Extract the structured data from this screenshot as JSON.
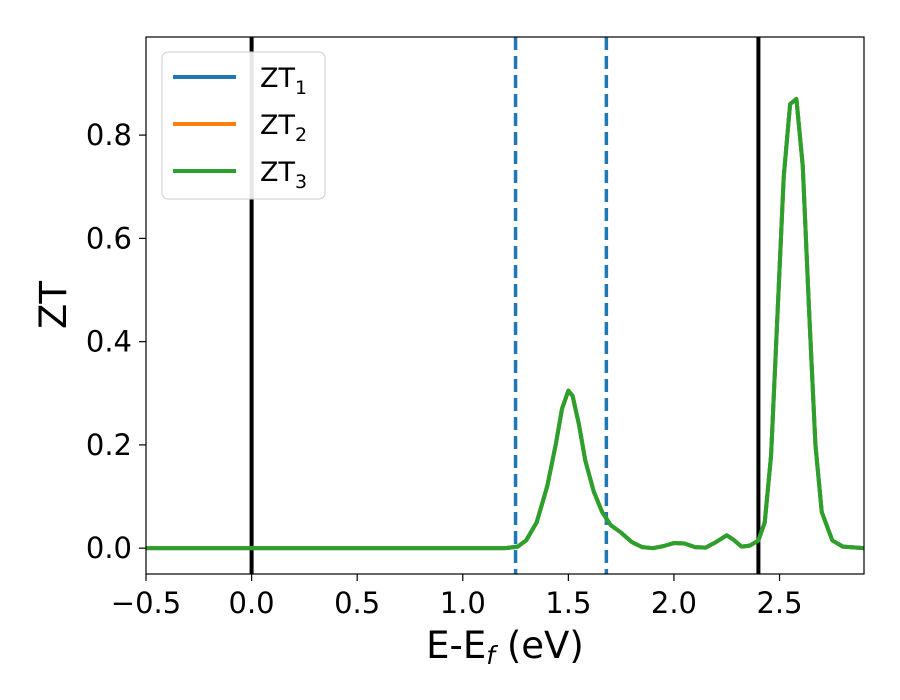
{
  "chart_data": {
    "type": "line",
    "xlabel": "E-E_f (eV)",
    "xlabel_parts": {
      "main": "E-E",
      "sub": "f",
      "unit": " (eV)"
    },
    "ylabel": "ZT",
    "xlim": [
      -0.5,
      2.9
    ],
    "ylim": [
      -0.05,
      0.99
    ],
    "xticks": [
      -0.5,
      0.0,
      0.5,
      1.0,
      1.5,
      2.0,
      2.5
    ],
    "xtick_labels": [
      "−0.5",
      "0.0",
      "0.5",
      "1.0",
      "1.5",
      "2.0",
      "2.5"
    ],
    "yticks": [
      0.0,
      0.2,
      0.4,
      0.6,
      0.8
    ],
    "ytick_labels": [
      "0.0",
      "0.2",
      "0.4",
      "0.6",
      "0.8"
    ],
    "grid": false,
    "legend_position": "top-left",
    "vertical_lines": [
      {
        "x": 0.0,
        "style": "solid",
        "color": "#000000"
      },
      {
        "x": 2.4,
        "style": "solid",
        "color": "#000000"
      },
      {
        "x": 1.25,
        "style": "dashed",
        "color": "#1f77b4"
      },
      {
        "x": 1.68,
        "style": "dashed",
        "color": "#1f77b4"
      }
    ],
    "x": [
      -0.5,
      0.0,
      0.5,
      1.0,
      1.2,
      1.26,
      1.3,
      1.35,
      1.4,
      1.44,
      1.47,
      1.5,
      1.52,
      1.55,
      1.58,
      1.62,
      1.66,
      1.7,
      1.75,
      1.8,
      1.85,
      1.9,
      1.95,
      2.0,
      2.05,
      2.1,
      2.15,
      2.2,
      2.25,
      2.28,
      2.32,
      2.36,
      2.4,
      2.43,
      2.46,
      2.49,
      2.52,
      2.55,
      2.58,
      2.61,
      2.64,
      2.67,
      2.7,
      2.75,
      2.8,
      2.9
    ],
    "series": [
      {
        "name": "ZT_1",
        "label_main": "ZT",
        "label_sub": "1",
        "color": "#1f77b4",
        "values": [
          0,
          0,
          0,
          0,
          0,
          0.003,
          0.015,
          0.05,
          0.12,
          0.2,
          0.27,
          0.305,
          0.295,
          0.24,
          0.17,
          0.11,
          0.07,
          0.045,
          0.03,
          0.012,
          0.002,
          0.0,
          0.004,
          0.01,
          0.009,
          0.002,
          0.001,
          0.012,
          0.025,
          0.017,
          0.003,
          0.005,
          0.015,
          0.05,
          0.18,
          0.45,
          0.72,
          0.86,
          0.87,
          0.74,
          0.46,
          0.2,
          0.07,
          0.015,
          0.003,
          0.0
        ]
      },
      {
        "name": "ZT_2",
        "label_main": "ZT",
        "label_sub": "2",
        "color": "#ff7f0e",
        "values": [
          0,
          0,
          0,
          0,
          0,
          0.003,
          0.015,
          0.05,
          0.12,
          0.2,
          0.27,
          0.305,
          0.295,
          0.24,
          0.17,
          0.11,
          0.07,
          0.045,
          0.03,
          0.012,
          0.002,
          0.0,
          0.004,
          0.01,
          0.009,
          0.002,
          0.001,
          0.012,
          0.025,
          0.017,
          0.003,
          0.005,
          0.015,
          0.05,
          0.18,
          0.45,
          0.72,
          0.86,
          0.87,
          0.74,
          0.46,
          0.2,
          0.07,
          0.015,
          0.003,
          0.0
        ]
      },
      {
        "name": "ZT_3",
        "label_main": "ZT",
        "label_sub": "3",
        "color": "#2ca02c",
        "values": [
          0,
          0,
          0,
          0,
          0,
          0.003,
          0.015,
          0.05,
          0.12,
          0.2,
          0.27,
          0.305,
          0.295,
          0.24,
          0.17,
          0.11,
          0.07,
          0.045,
          0.03,
          0.012,
          0.002,
          0.0,
          0.004,
          0.01,
          0.009,
          0.002,
          0.001,
          0.012,
          0.025,
          0.017,
          0.003,
          0.005,
          0.015,
          0.05,
          0.18,
          0.45,
          0.72,
          0.86,
          0.87,
          0.74,
          0.46,
          0.2,
          0.07,
          0.015,
          0.003,
          0.0
        ]
      }
    ]
  }
}
